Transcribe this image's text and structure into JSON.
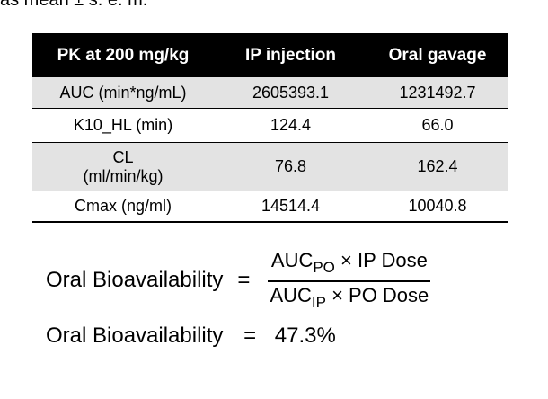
{
  "caption": "as mean ± s. e. m.",
  "table": {
    "headers": [
      "PK at 200 mg/kg",
      "IP injection",
      "Oral gavage"
    ],
    "rows": [
      {
        "label": "AUC (min*ng/mL)",
        "ip": "2605393.1",
        "oral": "1231492.7"
      },
      {
        "label": "K10_HL (min)",
        "ip": "124.4",
        "oral": "66.0"
      },
      {
        "label_line1": "CL",
        "label_line2": "(ml/min/kg)",
        "ip": "76.8",
        "oral": "162.4"
      },
      {
        "label": "Cmax (ng/ml)",
        "ip": "14514.4",
        "oral": "10040.8"
      }
    ]
  },
  "formula": {
    "lhs": "Oral Bioavailability",
    "equals": "=",
    "numerator_auc": "AUC",
    "numerator_sub": "PO",
    "numerator_rest": " × IP Dose",
    "denominator_auc": "AUC",
    "denominator_sub": "IP",
    "denominator_rest": " × PO Dose"
  },
  "result": {
    "lhs": "Oral Bioavailability",
    "equals": "=",
    "value": "47.3%"
  }
}
